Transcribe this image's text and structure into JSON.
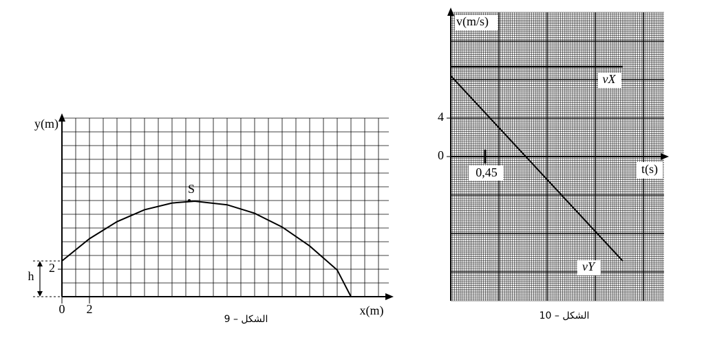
{
  "chart_data": [
    {
      "type": "line",
      "caption": "الشكل – 9",
      "xlabel": "x(m)",
      "ylabel": "y(m)",
      "annotations": [
        "S",
        "h"
      ],
      "xlim": [
        0,
        23.75
      ],
      "ylim": [
        0,
        13
      ],
      "xticks": [
        0,
        2
      ],
      "yticks": [
        2
      ],
      "grid": true,
      "series": [
        {
          "name": "y",
          "color": "#000",
          "x": [
            0,
            2,
            4,
            6,
            8,
            9.65,
            12,
            14,
            16,
            18,
            20,
            21
          ],
          "values": [
            2.6,
            4.22,
            5.46,
            6.33,
            6.82,
            6.95,
            6.69,
            6.07,
            5.07,
            3.69,
            1.94,
            0
          ]
        }
      ]
    },
    {
      "type": "line",
      "caption": "الشكل – 10",
      "xlabel": "t(s)",
      "ylabel": "v(m/s)",
      "xlim": [
        0,
        2.79
      ],
      "ylim": [
        -15,
        15
      ],
      "xticks": [
        {
          "value": 0.45,
          "label": "0,45"
        }
      ],
      "yticks": [
        0,
        4
      ],
      "grid": true,
      "series": [
        {
          "name": "vX",
          "color": "#000",
          "x": [
            0,
            2.25
          ],
          "values": [
            9.36,
            9.36
          ]
        },
        {
          "name": "vY",
          "color": "#000",
          "x": [
            0,
            2.25
          ],
          "values": [
            8.4,
            -10.86
          ]
        }
      ]
    }
  ]
}
